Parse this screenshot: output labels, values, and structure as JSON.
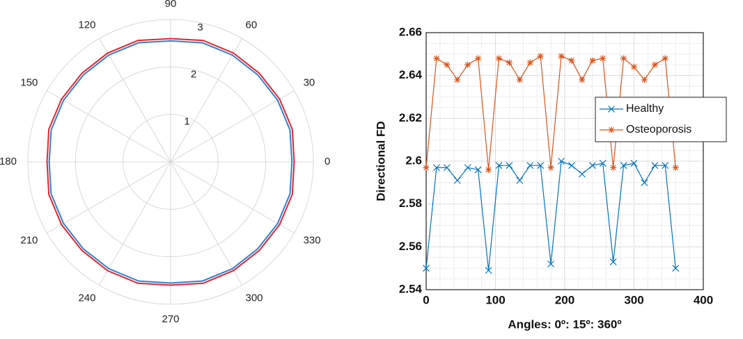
{
  "chart_data": [
    {
      "type": "polar",
      "x": [
        0,
        15,
        30,
        45,
        60,
        75,
        90,
        105,
        120,
        135,
        150,
        165,
        180,
        195,
        210,
        225,
        240,
        255,
        270,
        285,
        300,
        315,
        330,
        345,
        360
      ],
      "rlim": [
        0,
        3
      ],
      "rticks": [
        1,
        2,
        3
      ],
      "thetaticks": [
        0,
        30,
        60,
        90,
        120,
        150,
        180,
        210,
        240,
        270,
        300,
        330
      ],
      "grid": true,
      "series": [
        {
          "color": "#2f7fcf",
          "values": [
            2.55,
            2.597,
            2.597,
            2.591,
            2.597,
            2.596,
            2.549,
            2.598,
            2.598,
            2.591,
            2.598,
            2.598,
            2.552,
            2.6,
            2.598,
            2.594,
            2.598,
            2.599,
            2.553,
            2.598,
            2.599,
            2.59,
            2.598,
            2.598,
            2.55
          ]
        },
        {
          "color": "#e8202a",
          "values": [
            2.597,
            2.648,
            2.645,
            2.638,
            2.645,
            2.648,
            2.596,
            2.648,
            2.646,
            2.638,
            2.646,
            2.649,
            2.597,
            2.649,
            2.647,
            2.638,
            2.647,
            2.648,
            2.597,
            2.648,
            2.644,
            2.638,
            2.645,
            2.648,
            2.597
          ]
        }
      ]
    },
    {
      "type": "line",
      "x_label": "Angles: 0º: 15º: 360º",
      "y_label": "Directional FD",
      "x": [
        0,
        15,
        30,
        45,
        60,
        75,
        90,
        105,
        120,
        135,
        150,
        165,
        180,
        195,
        210,
        225,
        240,
        255,
        270,
        285,
        300,
        315,
        330,
        345,
        360
      ],
      "xlim": [
        0,
        400
      ],
      "xticks": [
        0,
        100,
        200,
        300,
        400
      ],
      "ylim": [
        2.54,
        2.66
      ],
      "yticks": [
        2.54,
        2.56,
        2.58,
        2.6,
        2.62,
        2.64,
        2.66
      ],
      "grid": true,
      "minor_grid": true,
      "series": [
        {
          "name": "Healthy",
          "color": "#0072bd",
          "marker": "x",
          "values": [
            2.55,
            2.597,
            2.597,
            2.591,
            2.597,
            2.596,
            2.549,
            2.598,
            2.598,
            2.591,
            2.598,
            2.598,
            2.552,
            2.6,
            2.598,
            2.594,
            2.598,
            2.599,
            2.553,
            2.598,
            2.599,
            2.59,
            2.598,
            2.598,
            2.55
          ]
        },
        {
          "name": "Osteoporosis",
          "color": "#d95319",
          "marker": "*",
          "values": [
            2.597,
            2.648,
            2.645,
            2.638,
            2.645,
            2.648,
            2.596,
            2.648,
            2.646,
            2.638,
            2.646,
            2.649,
            2.597,
            2.649,
            2.647,
            2.638,
            2.647,
            2.648,
            2.597,
            2.648,
            2.644,
            2.638,
            2.645,
            2.648,
            2.597
          ]
        }
      ]
    }
  ]
}
